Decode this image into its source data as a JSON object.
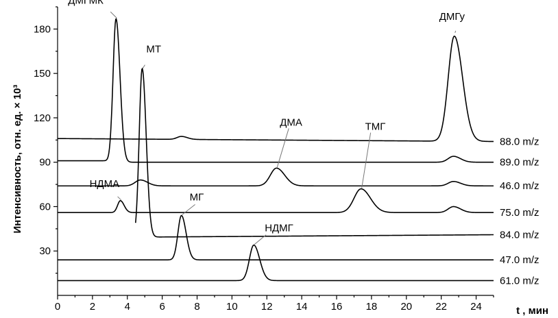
{
  "chart_data": {
    "type": "line",
    "title": "",
    "xlabel": "t , мин",
    "ylabel": "Интенсивность, отн. ед. × 10³",
    "xlim": [
      0,
      25
    ],
    "ylim": [
      0,
      195
    ],
    "x_ticks": [
      0,
      2,
      4,
      6,
      8,
      10,
      12,
      14,
      16,
      18,
      20,
      22,
      24
    ],
    "y_ticks": [
      30,
      60,
      90,
      120,
      150,
      180
    ],
    "grid": false,
    "series": [
      {
        "name": "88.0 m/z",
        "baseline": 106,
        "end_level": 104,
        "peaks": [
          {
            "label": "",
            "t": 7.1,
            "height": 2,
            "width": 0.25
          },
          {
            "label": "ДМГу",
            "t": 22.75,
            "height": 71,
            "width": 0.35
          }
        ]
      },
      {
        "name": "89.0 m/z",
        "baseline": 90,
        "pre_level": 91,
        "onset": 3.1,
        "peaks": [
          {
            "label": "ДМГМК",
            "t": 3.35,
            "height": 97,
            "width": 0.17
          },
          {
            "label": "",
            "t": 22.7,
            "height": 4,
            "width": 0.3
          }
        ]
      },
      {
        "name": "46.0 m/z",
        "baseline": 74,
        "peaks": [
          {
            "label": "",
            "t": 4.75,
            "height": 4,
            "width": 0.3
          },
          {
            "label": "ДМА",
            "t": 12.55,
            "height": 12,
            "width": 0.35
          },
          {
            "label": "",
            "t": 22.7,
            "height": 3,
            "width": 0.3
          }
        ]
      },
      {
        "name": "75.0 m/z",
        "baseline": 56,
        "peaks": [
          {
            "label": "НДМА",
            "t": 3.6,
            "height": 8,
            "width": 0.16
          },
          {
            "label": "ТМГ",
            "t": 17.4,
            "height": 16,
            "width": 0.4
          },
          {
            "label": "",
            "t": 22.7,
            "height": 4,
            "width": 0.3
          }
        ]
      },
      {
        "name": "84.0 m/z",
        "baseline": 39,
        "end_level": 41,
        "onset": 4.45,
        "peaks": [
          {
            "label": "МТ",
            "t": 4.85,
            "height": 114,
            "width": 0.17
          }
        ]
      },
      {
        "name": "47.0 m/z",
        "baseline": 24,
        "peaks": [
          {
            "label": "МГ",
            "t": 7.1,
            "height": 30,
            "width": 0.2
          }
        ]
      },
      {
        "name": "61.0 m/z",
        "baseline": 10,
        "peaks": [
          {
            "label": "НДМГ",
            "t": 11.25,
            "height": 24,
            "width": 0.25
          }
        ]
      }
    ],
    "peak_labels": [
      {
        "text": "ДМГМК",
        "t": 3.35,
        "value": 187
      },
      {
        "text": "МТ",
        "t": 4.85,
        "value": 153
      },
      {
        "text": "ДМА",
        "t": 12.55,
        "value": 86
      },
      {
        "text": "ТМГ",
        "t": 17.4,
        "value": 72
      },
      {
        "text": "ДМГу",
        "t": 22.75,
        "value": 177
      },
      {
        "text": "НДМА",
        "t": 3.6,
        "value": 64
      },
      {
        "text": "МГ",
        "t": 7.1,
        "value": 54
      },
      {
        "text": "НДМГ",
        "t": 11.25,
        "value": 34
      }
    ]
  }
}
